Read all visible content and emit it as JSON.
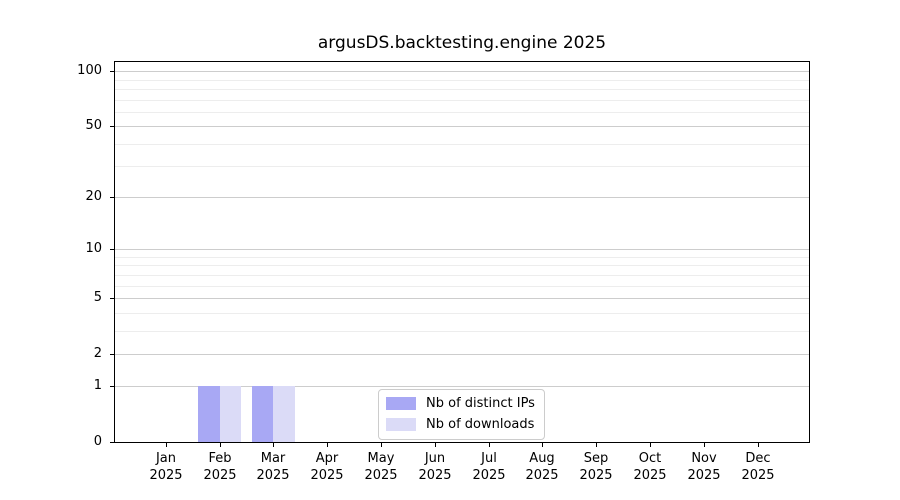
{
  "chart_data": {
    "type": "bar",
    "title": "argusDS.backtesting.engine 2025",
    "categories": [
      "Jan",
      "Feb",
      "Mar",
      "Apr",
      "May",
      "Jun",
      "Jul",
      "Aug",
      "Sep",
      "Oct",
      "Nov",
      "Dec"
    ],
    "x_year": "2025",
    "series": [
      {
        "name": "Nb of distinct IPs",
        "color": "#a8a8f4",
        "values": [
          0,
          1,
          1,
          0,
          0,
          0,
          0,
          0,
          0,
          0,
          0,
          0
        ]
      },
      {
        "name": "Nb of downloads",
        "color": "#dbdbf7",
        "values": [
          0,
          1,
          1,
          0,
          0,
          0,
          0,
          0,
          0,
          0,
          0,
          0
        ]
      }
    ],
    "yscale": "log1p",
    "ylim": [
      0,
      112
    ],
    "y_tick_labels": [
      0,
      1,
      2,
      5,
      10,
      20,
      50,
      100
    ],
    "y_minor_gridlines": [
      3,
      4,
      6,
      7,
      8,
      9,
      30,
      40,
      60,
      70,
      80,
      90
    ],
    "grid": "horizontal",
    "legend_position": "lower center",
    "colors": {
      "spine": "#000000",
      "major_grid": "#cdcdcd",
      "minor_grid": "#ededed",
      "text": "#000000",
      "legend_border": "#cccccc"
    }
  }
}
